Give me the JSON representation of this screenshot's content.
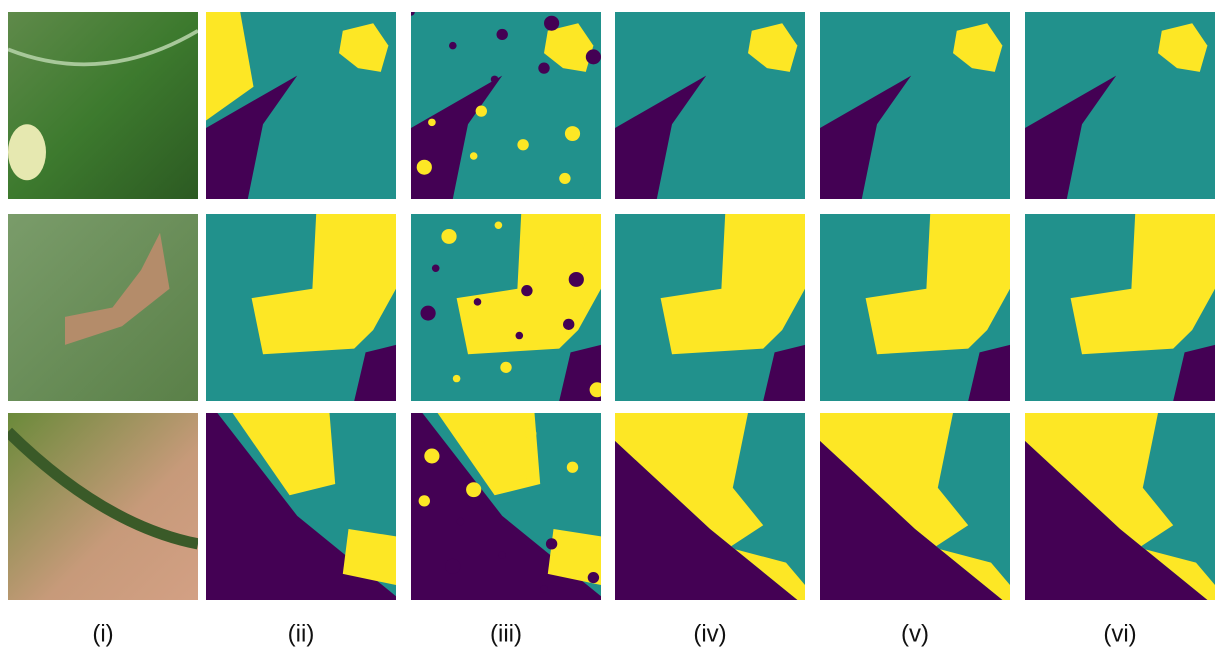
{
  "labels": [
    "(i)",
    "(ii)",
    "(iii)",
    "(iv)",
    "(v)",
    "(vi)"
  ]
}
